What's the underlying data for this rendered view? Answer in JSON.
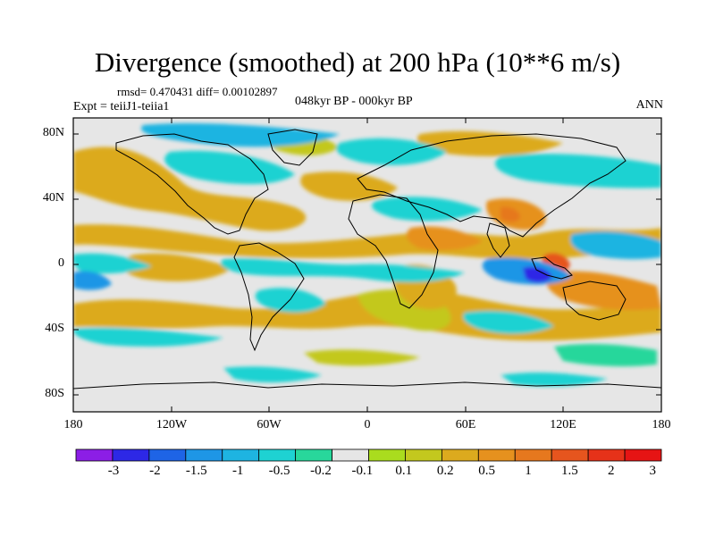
{
  "title": "Divergence (smoothed) at 200 hPa (10**6 m/s)",
  "stats": "rmsd= 0.470431 diff= 0.00102897",
  "experiment": "Expt = teiiJ1-teiia1",
  "period": "048kyr BP - 000kyr BP",
  "season": "ANN",
  "lat_labels": [
    "80N",
    "40N",
    "0",
    "40S",
    "80S"
  ],
  "lon_labels": [
    "180",
    "120W",
    "60W",
    "0",
    "60E",
    "120E",
    "180"
  ],
  "colorbar": {
    "colors": [
      "#8c1ee6",
      "#2d28e6",
      "#1e64e6",
      "#1e96e6",
      "#1eb4e1",
      "#1ed2d2",
      "#28d79b",
      "#e6e6e6",
      "#aadc1e",
      "#c3c81e",
      "#dcaa1e",
      "#e6911e",
      "#e6781e",
      "#e6551e",
      "#e63219",
      "#e61414"
    ],
    "labels": [
      "-3",
      "-2",
      "-1.5",
      "-1",
      "-0.5",
      "-0.2",
      "-0.1",
      "0.1",
      "0.2",
      "0.5",
      "1",
      "1.5",
      "2",
      "3"
    ]
  }
}
